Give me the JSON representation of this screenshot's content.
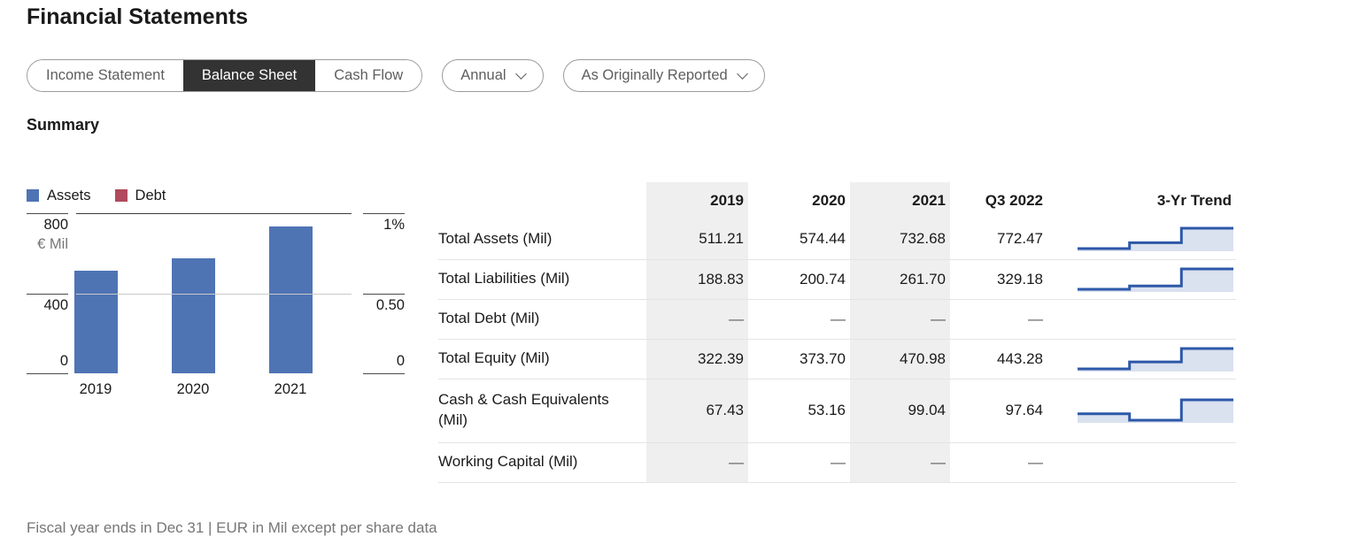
{
  "page": {
    "title": "Financial Statements"
  },
  "tabs": {
    "items": [
      {
        "label": "Income Statement",
        "selected": false
      },
      {
        "label": "Balance Sheet",
        "selected": true
      },
      {
        "label": "Cash Flow",
        "selected": false
      }
    ]
  },
  "filters": {
    "period_dropdown": {
      "value": "Annual"
    },
    "report_dropdown": {
      "value": "As Originally Reported"
    }
  },
  "summary_heading": "Summary",
  "chart_data": {
    "type": "bar",
    "categories": [
      "2019",
      "2020",
      "2021"
    ],
    "series": [
      {
        "name": "Assets",
        "color": "#4f74b4",
        "values": [
          511.21,
          574.44,
          732.68
        ]
      },
      {
        "name": "Debt",
        "color": "#b04a5c",
        "values": [
          null,
          null,
          null
        ]
      }
    ],
    "left_axis": {
      "unit_label": "€ Mil",
      "ticks": [
        "800",
        "400",
        "0"
      ],
      "range": [
        0,
        800
      ]
    },
    "right_axis": {
      "ticks": [
        "1%",
        "0.50",
        "0"
      ],
      "range": [
        0,
        1
      ]
    },
    "legend_position": "top",
    "grid": "single mid horizontal gridline"
  },
  "table": {
    "columns": [
      "",
      "2019",
      "2020",
      "2021",
      "Q3 2022",
      "3-Yr Trend"
    ],
    "rows": [
      {
        "label": "Total Assets (Mil)",
        "values": [
          "511.21",
          "574.44",
          "732.68",
          "772.47"
        ],
        "trend": [
          511.21,
          574.44,
          732.68
        ]
      },
      {
        "label": "Total Liabilities (Mil)",
        "values": [
          "188.83",
          "200.74",
          "261.70",
          "329.18"
        ],
        "trend": [
          188.83,
          200.74,
          261.7
        ]
      },
      {
        "label": "Total Debt (Mil)",
        "values": [
          "—",
          "—",
          "—",
          "—"
        ],
        "trend": null
      },
      {
        "label": "Total Equity (Mil)",
        "values": [
          "322.39",
          "373.70",
          "470.98",
          "443.28"
        ],
        "trend": [
          322.39,
          373.7,
          470.98
        ]
      },
      {
        "label": "Cash & Cash Equivalents (Mil)",
        "values": [
          "67.43",
          "53.16",
          "99.04",
          "97.64"
        ],
        "trend": [
          67.43,
          53.16,
          99.04
        ]
      },
      {
        "label": "Working Capital (Mil)",
        "values": [
          "—",
          "—",
          "—",
          "—"
        ],
        "trend": null
      }
    ]
  },
  "footer": {
    "note": "Fiscal year ends in Dec 31 | EUR in Mil except per share data"
  },
  "colors": {
    "bar_blue": "#4f74b4",
    "debt_red": "#b04a5c",
    "spark_line": "#2d58a8",
    "spark_fill": "#dae1ef",
    "tab_selected_bg": "#333333",
    "column_stripe": "#efefef"
  }
}
